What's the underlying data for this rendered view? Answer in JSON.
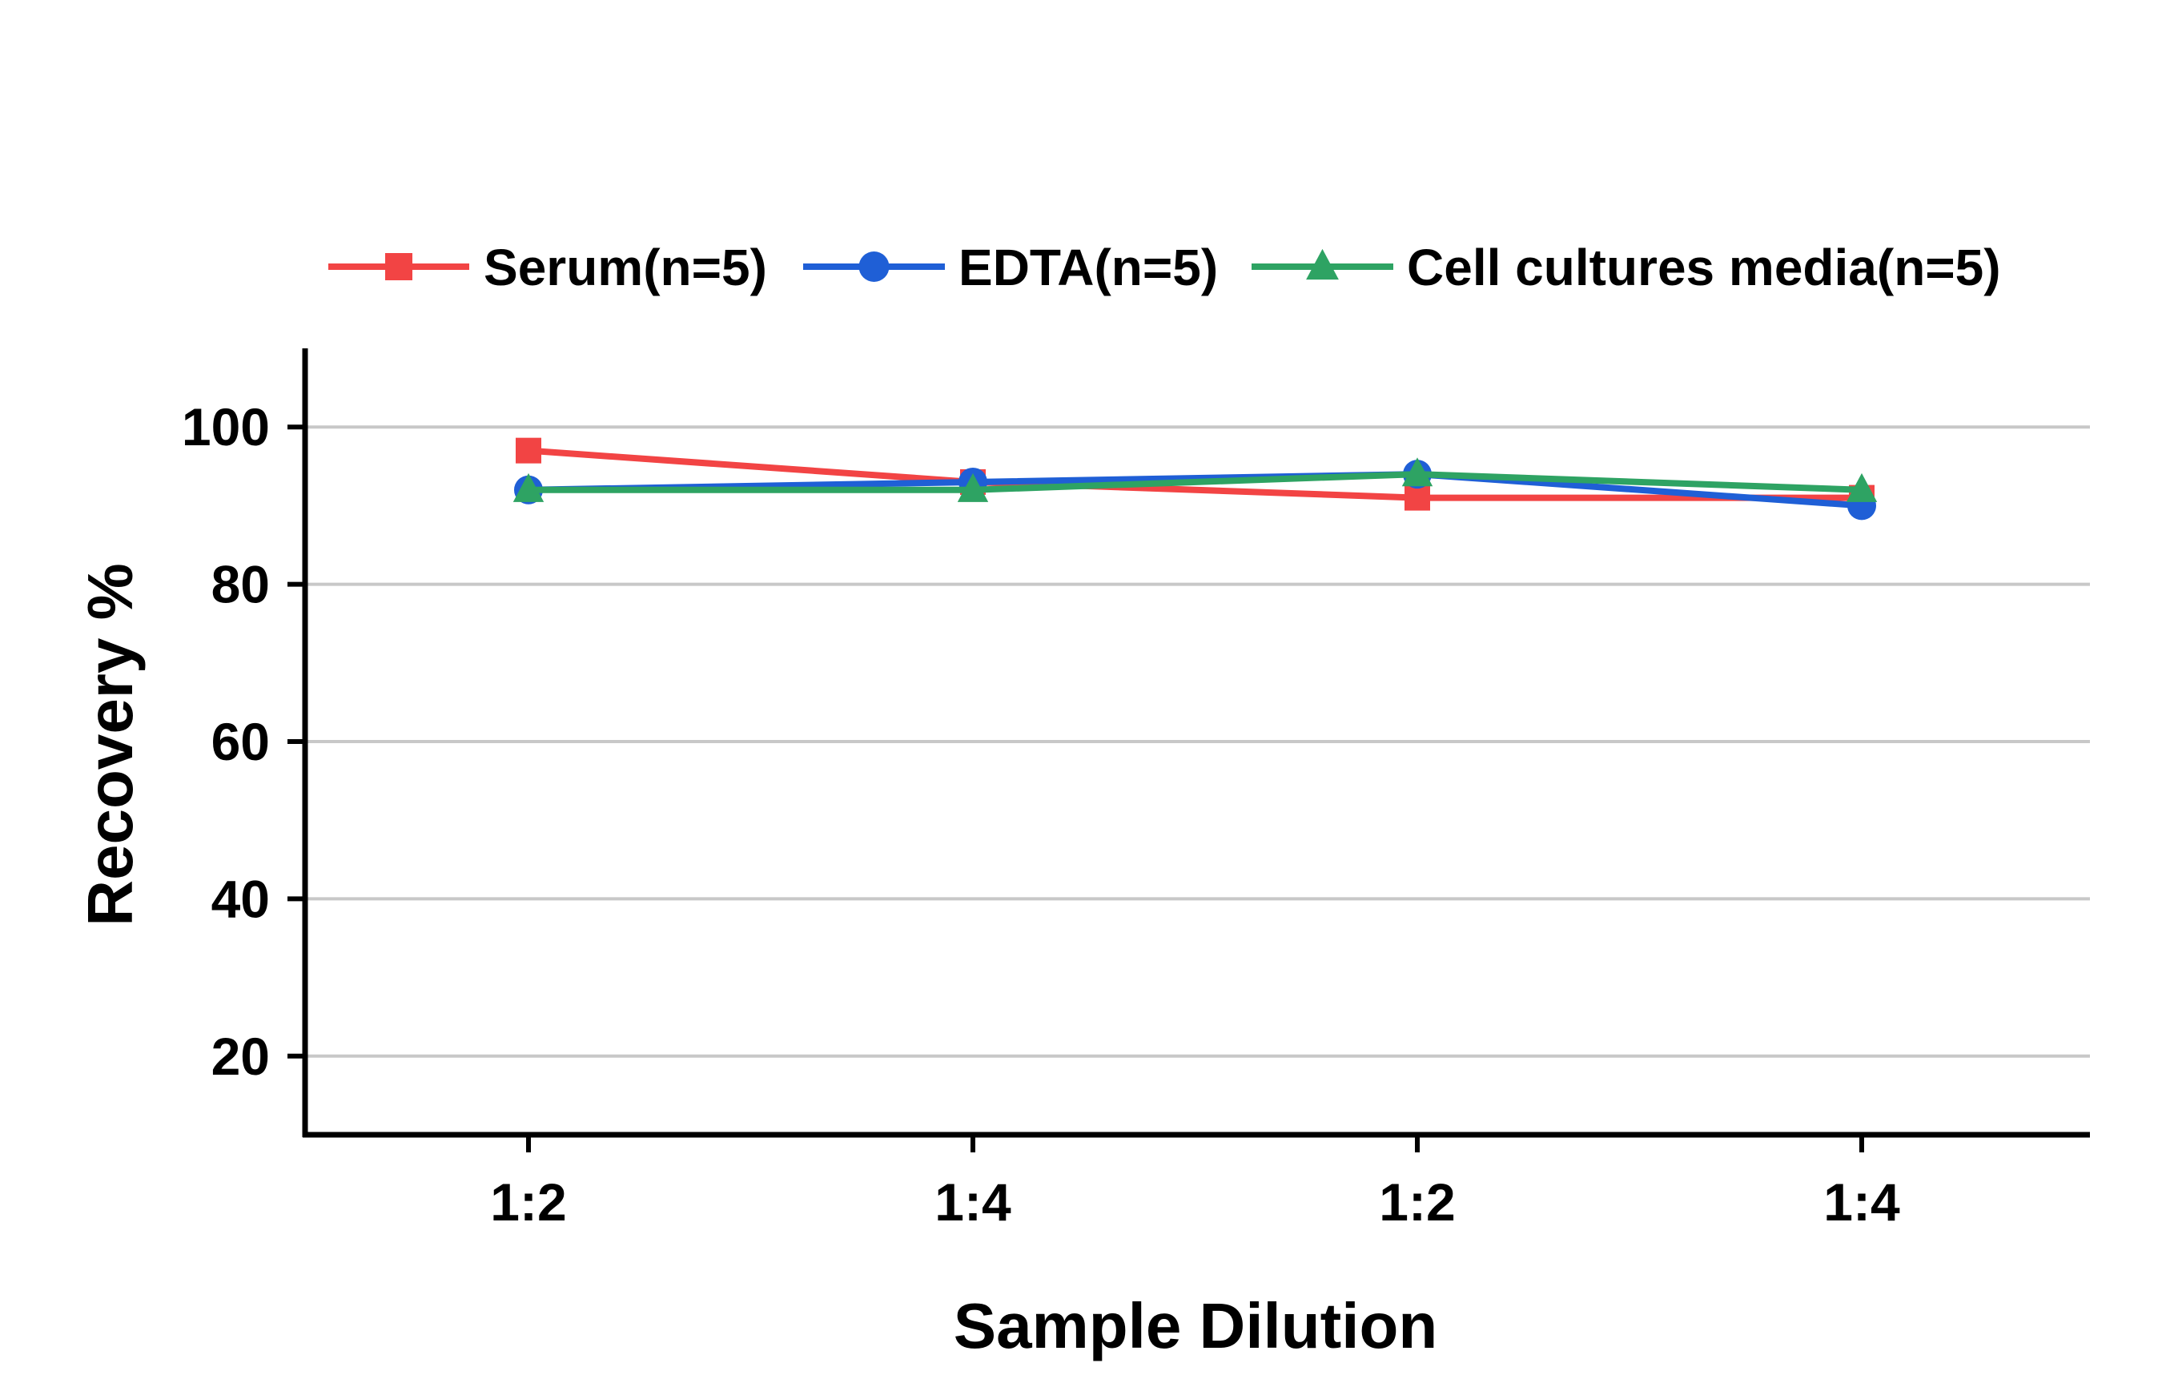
{
  "chart_data": {
    "type": "line",
    "title": "",
    "xlabel": "Sample Dilution",
    "ylabel": "Recovery %",
    "categories": [
      "1:2",
      "1:4",
      "1:2",
      "1:4"
    ],
    "ylim": [
      10,
      110
    ],
    "yticks": [
      20,
      40,
      60,
      80,
      100
    ],
    "grid": true,
    "legend_position": "top",
    "series": [
      {
        "name": "Serum(n=5)",
        "color": "#f24444",
        "marker": "square",
        "values": [
          97,
          93,
          91,
          91
        ]
      },
      {
        "name": "EDTA(n=5)",
        "color": "#1f5fd6",
        "marker": "circle",
        "values": [
          92,
          93,
          94,
          90
        ]
      },
      {
        "name": "Cell cultures media(n=5)",
        "color": "#2ea363",
        "marker": "triangle",
        "values": [
          92,
          92,
          94,
          92
        ]
      }
    ]
  }
}
